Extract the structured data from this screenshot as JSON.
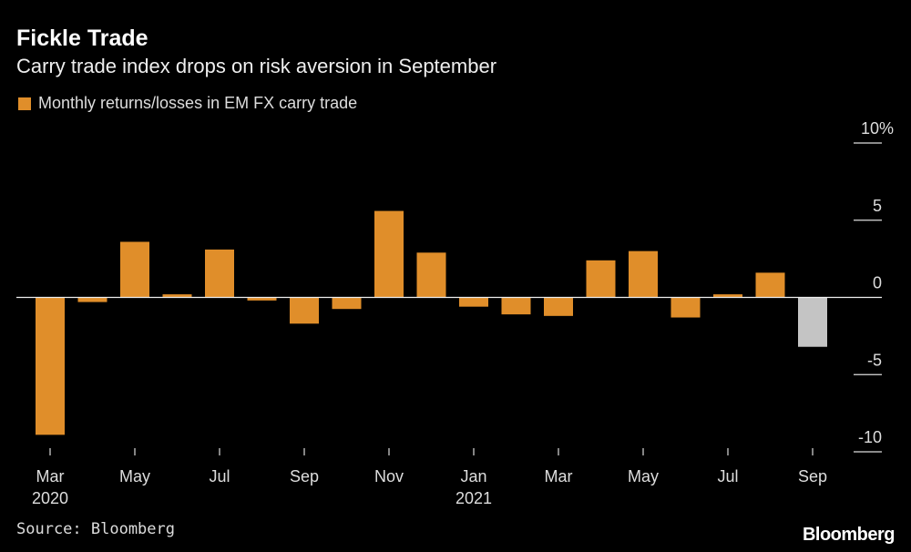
{
  "title": "Fickle Trade",
  "subtitle": "Carry trade index drops on risk aversion in September",
  "source": "Source: Bloomberg",
  "logo": "Bloomberg",
  "colors": {
    "bar": "#e08e2a",
    "highlight": "#c4c4c4",
    "background": "#000000"
  },
  "chart_data": {
    "type": "bar",
    "legend": [
      "Monthly returns/losses in EM FX carry trade"
    ],
    "categories": [
      "Mar 2020",
      "Apr 2020",
      "May 2020",
      "Jun 2020",
      "Jul 2020",
      "Aug 2020",
      "Sep 2020",
      "Oct 2020",
      "Nov 2020",
      "Dec 2020",
      "Jan 2021",
      "Feb 2021",
      "Mar 2021",
      "Apr 2021",
      "May 2021",
      "Jun 2021",
      "Jul 2021",
      "Aug 2021",
      "Sep 2021"
    ],
    "series": [
      {
        "name": "Monthly returns/losses in EM FX carry trade",
        "values": [
          -8.9,
          -0.3,
          3.6,
          0.2,
          3.1,
          -0.2,
          -1.7,
          -0.75,
          5.6,
          2.9,
          -0.6,
          -1.1,
          -1.2,
          2.4,
          3.0,
          -1.3,
          0.2,
          1.6,
          -3.2
        ]
      }
    ],
    "highlight_index": 18,
    "ylim": [
      -10,
      10
    ],
    "yticks": [
      {
        "v": 10,
        "label": "10%"
      },
      {
        "v": 5,
        "label": "5"
      },
      {
        "v": 0,
        "label": "0"
      },
      {
        "v": -5,
        "label": "-5"
      },
      {
        "v": -10,
        "label": "-10"
      }
    ],
    "xticks": [
      {
        "i": 0,
        "label": "Mar",
        "sub": "2020"
      },
      {
        "i": 2,
        "label": "May"
      },
      {
        "i": 4,
        "label": "Jul"
      },
      {
        "i": 6,
        "label": "Sep"
      },
      {
        "i": 8,
        "label": "Nov"
      },
      {
        "i": 10,
        "label": "Jan",
        "sub": "2021"
      },
      {
        "i": 12,
        "label": "Mar"
      },
      {
        "i": 14,
        "label": "May"
      },
      {
        "i": 16,
        "label": "Jul"
      },
      {
        "i": 18,
        "label": "Sep"
      }
    ],
    "ylabel": "",
    "xlabel": ""
  }
}
